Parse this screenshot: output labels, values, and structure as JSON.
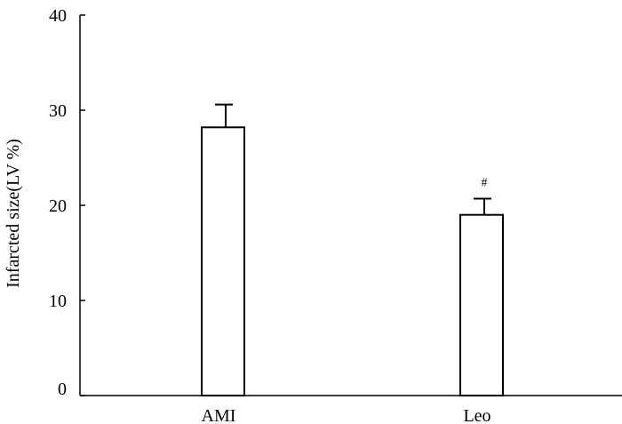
{
  "chart_data": {
    "type": "bar",
    "title": "",
    "xlabel": "",
    "ylabel": "Infarcted size(LV %)",
    "categories": [
      "AMI",
      "Leo"
    ],
    "values": [
      28.2,
      19.0
    ],
    "errors": [
      2.4,
      1.7
    ],
    "annotations": [
      "",
      "#"
    ],
    "ylim": [
      0,
      40
    ],
    "yticks": [
      0,
      10,
      20,
      30,
      40
    ],
    "grid": false,
    "colors": {
      "bar_fill": "#ffffff",
      "bar_stroke": "#000000",
      "axis": "#000000"
    }
  }
}
